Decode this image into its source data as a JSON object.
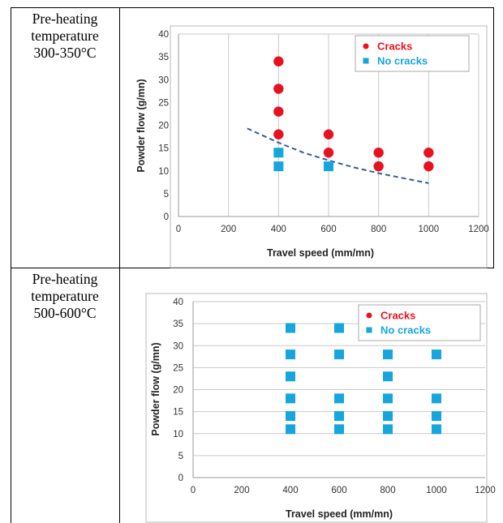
{
  "colors": {
    "cracks": "#e8121e",
    "no_cracks": "#16a6dd",
    "trend": "#3b5a9a",
    "grid": "#c9c9c9"
  },
  "rows": [
    {
      "label_lines": [
        "Pre-heating",
        "temperature",
        "300-350°C"
      ]
    },
    {
      "label_lines": [
        "Pre-heating",
        "temperature",
        "500-600°C"
      ]
    }
  ],
  "chart_data": [
    {
      "type": "scatter",
      "xlabel": "Travel speed (mm/mn)",
      "ylabel": "Powder flow (g/mn)",
      "xlim": [
        0,
        1200
      ],
      "ylim": [
        0,
        40
      ],
      "x_ticks": [
        "0",
        "200",
        "400",
        "600",
        "800",
        "1000",
        "1200"
      ],
      "y_ticks": [
        "0",
        "5",
        "10",
        "15",
        "20",
        "25",
        "30",
        "35",
        "40"
      ],
      "grid": "vertical",
      "legend_position": "top-right",
      "series": [
        {
          "name": "Cracks",
          "marker": "circle",
          "points": [
            [
              400,
              34
            ],
            [
              400,
              28
            ],
            [
              400,
              23
            ],
            [
              400,
              18
            ],
            [
              600,
              18
            ],
            [
              600,
              14
            ],
            [
              800,
              14
            ],
            [
              800,
              11
            ],
            [
              1000,
              14
            ],
            [
              1000,
              11
            ]
          ]
        },
        {
          "name": "No cracks",
          "marker": "square",
          "points": [
            [
              400,
              14
            ],
            [
              400,
              11
            ],
            [
              600,
              11
            ]
          ]
        }
      ],
      "trendline": {
        "style": "dashed",
        "points": [
          [
            275,
            19.3
          ],
          [
            400,
            16.2
          ],
          [
            500,
            14
          ],
          [
            600,
            12.3
          ],
          [
            700,
            10.8
          ],
          [
            800,
            9.5
          ],
          [
            900,
            8.4
          ],
          [
            1000,
            7.3
          ]
        ]
      }
    },
    {
      "type": "scatter",
      "xlabel": "Travel speed (mm/mn)",
      "ylabel": "Powder flow (g/mn)",
      "xlim": [
        0,
        1200
      ],
      "ylim": [
        0,
        40
      ],
      "x_ticks": [
        "0",
        "200",
        "400",
        "600",
        "800",
        "1000",
        "1200"
      ],
      "y_ticks": [
        "0",
        "5",
        "10",
        "15",
        "20",
        "25",
        "30",
        "35",
        "40"
      ],
      "grid": "horizontal",
      "legend_position": "top-right",
      "series": [
        {
          "name": "Cracks",
          "marker": "circle",
          "points": []
        },
        {
          "name": "No cracks",
          "marker": "square",
          "points": [
            [
              400,
              34
            ],
            [
              400,
              28
            ],
            [
              400,
              23
            ],
            [
              400,
              18
            ],
            [
              400,
              14
            ],
            [
              400,
              11
            ],
            [
              600,
              34
            ],
            [
              600,
              28
            ],
            [
              600,
              18
            ],
            [
              600,
              14
            ],
            [
              600,
              11
            ],
            [
              800,
              28
            ],
            [
              800,
              23
            ],
            [
              800,
              18
            ],
            [
              800,
              14
            ],
            [
              800,
              11
            ],
            [
              1000,
              28
            ],
            [
              1000,
              18
            ],
            [
              1000,
              14
            ],
            [
              1000,
              11
            ]
          ]
        }
      ]
    }
  ]
}
